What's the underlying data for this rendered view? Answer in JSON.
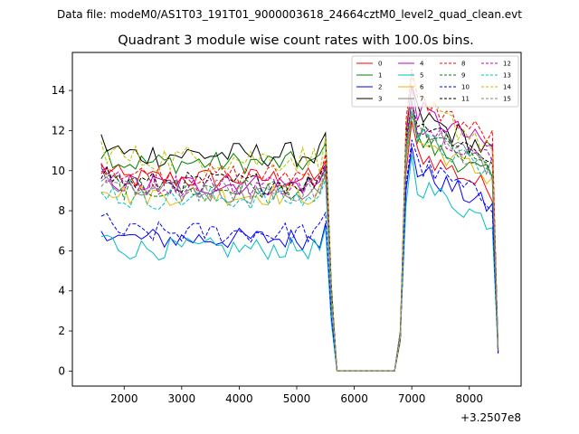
{
  "chart_data": {
    "type": "line",
    "suptitle": "Data file: modeM0/AS1T03_191T01_9000003618_24664cztM0_level2_quad_clean.evt",
    "title": "Quadrant 3 module wise count rates with 100.0s bins.",
    "xlabel": "",
    "ylabel": "",
    "x_offset_label": "+3.2507e8",
    "xlim": [
      1100,
      8900
    ],
    "ylim": [
      -0.75,
      15.9
    ],
    "x_ticks": [
      2000,
      3000,
      4000,
      5000,
      6000,
      7000,
      8000
    ],
    "x_tick_labels": [
      "2000",
      "3000",
      "4000",
      "5000",
      "6000",
      "7000",
      "8000"
    ],
    "y_ticks": [
      0,
      2,
      4,
      6,
      8,
      10,
      12,
      14
    ],
    "y_tick_labels": [
      "0",
      "2",
      "4",
      "6",
      "8",
      "10",
      "12",
      "14"
    ],
    "legend_position": "top-right",
    "legend_columns": 4,
    "x_start": 1600,
    "x_step": 100,
    "series": [
      {
        "name": "0",
        "color": "#ff0000",
        "style": "solid",
        "level1": 9.6,
        "level2": 9.4,
        "jitter": 0.35
      },
      {
        "name": "1",
        "color": "#008000",
        "style": "solid",
        "level1": 10.4,
        "level2": 10.0,
        "jitter": 0.35
      },
      {
        "name": "2",
        "color": "#0000ff",
        "style": "solid",
        "level1": 6.6,
        "level2": 8.5,
        "jitter": 0.35
      },
      {
        "name": "3",
        "color": "#000000",
        "style": "solid",
        "level1": 10.8,
        "level2": 11.3,
        "jitter": 0.4
      },
      {
        "name": "4",
        "color": "#bf00bf",
        "style": "solid",
        "level1": 9.3,
        "level2": 11.5,
        "jitter": 0.35
      },
      {
        "name": "5",
        "color": "#00bfbf",
        "style": "solid",
        "level1": 6.1,
        "level2": 7.8,
        "jitter": 0.35
      },
      {
        "name": "6",
        "color": "#e6b800",
        "style": "solid",
        "level1": 8.8,
        "level2": 10.0,
        "jitter": 0.35
      },
      {
        "name": "7",
        "color": "#808080",
        "style": "solid",
        "level1": 8.9,
        "level2": 10.6,
        "jitter": 0.35
      },
      {
        "name": "8",
        "color": "#ff0000",
        "style": "dashed",
        "level1": 9.8,
        "level2": 12.0,
        "jitter": 0.35
      },
      {
        "name": "9",
        "color": "#008000",
        "style": "dashed",
        "level1": 9.1,
        "level2": 10.4,
        "jitter": 0.35
      },
      {
        "name": "10",
        "color": "#0000ff",
        "style": "dashed",
        "level1": 6.9,
        "level2": 8.8,
        "jitter": 0.35
      },
      {
        "name": "11",
        "color": "#000000",
        "style": "dashed",
        "level1": 9.4,
        "level2": 11.0,
        "jitter": 0.35
      },
      {
        "name": "12",
        "color": "#bf00bf",
        "style": "dashed",
        "level1": 9.3,
        "level2": 10.9,
        "jitter": 0.35
      },
      {
        "name": "13",
        "color": "#00bfbf",
        "style": "dashed",
        "level1": 8.6,
        "level2": 10.2,
        "jitter": 0.35
      },
      {
        "name": "14",
        "color": "#bfbf00",
        "style": "dashed",
        "level1": 10.6,
        "level2": 11.7,
        "jitter": 0.45
      },
      {
        "name": "15",
        "color": "#808080",
        "style": "dashed",
        "level1": 9.0,
        "level2": 10.5,
        "jitter": 0.35
      }
    ],
    "annotations": {
      "gap_start": 5700,
      "gap_end": 6700,
      "gap_value": 0,
      "second_segment_start": 6900,
      "second_segment_end": 8400,
      "end_x": 8500,
      "end_value": 1.0
    }
  }
}
